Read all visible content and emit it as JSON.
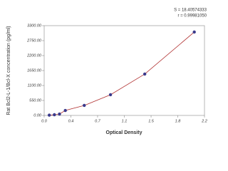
{
  "chart_data": {
    "type": "scatter",
    "x_label": "Optical Density",
    "y_label": "Rat Bcl2-L-1/Bcl-X concentration (pg/ml)",
    "annotations": [
      "S = 18.40574333",
      "r = 0.99981050"
    ],
    "x": [
      0.07,
      0.14,
      0.21,
      0.29,
      0.55,
      0.91,
      1.38,
      2.06
    ],
    "values": [
      10,
      26,
      52,
      183,
      367,
      760,
      1520,
      3065
    ],
    "color": "#3a3a8c",
    "fit_color": "#b03030",
    "fit": true,
    "xlim": [
      0,
      2.2
    ],
    "xticks": [
      {
        "value": 0,
        "label": "0.0"
      },
      {
        "value": 0.367,
        "label": "0.4"
      },
      {
        "value": 0.733,
        "label": "0.7"
      },
      {
        "value": 1.1,
        "label": "1.1"
      },
      {
        "value": 1.467,
        "label": "1.5"
      },
      {
        "value": 1.833,
        "label": "1.8"
      },
      {
        "value": 2.2,
        "label": "2.2"
      }
    ],
    "ylim": [
      0,
      3300
    ],
    "yticks": [
      {
        "value": 0,
        "label": "0.00"
      },
      {
        "value": 550,
        "label": "550.00"
      },
      {
        "value": 1100,
        "label": "1100.00"
      },
      {
        "value": 1650,
        "label": "1650.00"
      },
      {
        "value": 2200,
        "label": "2200.00"
      },
      {
        "value": 2750,
        "label": "2750.00"
      },
      {
        "value": 3300,
        "label": "3300.00"
      }
    ]
  }
}
